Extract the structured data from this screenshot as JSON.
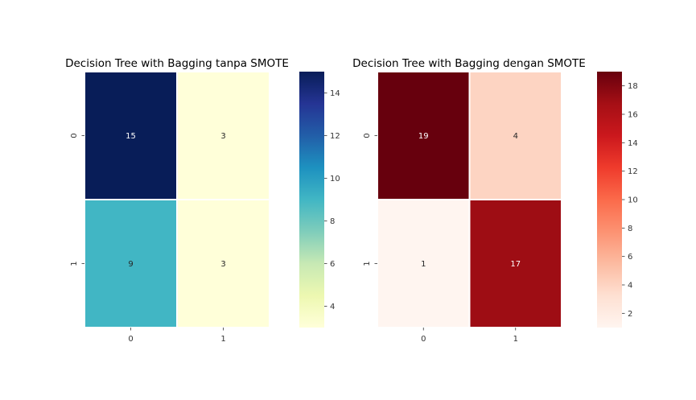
{
  "chart_data": [
    {
      "type": "heatmap",
      "title": "Decision Tree with Bagging tanpa SMOTE",
      "x_categories": [
        "0",
        "1"
      ],
      "y_categories": [
        "0",
        "1"
      ],
      "values": [
        [
          15,
          3
        ],
        [
          9,
          3
        ]
      ],
      "colormap": "YlGnBu",
      "vmin": 3,
      "vmax": 15,
      "colorbar_ticks": [
        "4",
        "6",
        "8",
        "10",
        "12",
        "14"
      ],
      "annotate": true,
      "cell_border_color": "#ffffff"
    },
    {
      "type": "heatmap",
      "title": "Decision Tree with Bagging dengan SMOTE",
      "x_categories": [
        "0",
        "1"
      ],
      "y_categories": [
        "0",
        "1"
      ],
      "values": [
        [
          19,
          4
        ],
        [
          1,
          17
        ]
      ],
      "colormap": "Reds",
      "vmin": 1,
      "vmax": 19,
      "colorbar_ticks": [
        "2",
        "4",
        "6",
        "8",
        "10",
        "12",
        "14",
        "16",
        "18"
      ],
      "annotate": true,
      "cell_border_color": "#ffffff"
    }
  ]
}
